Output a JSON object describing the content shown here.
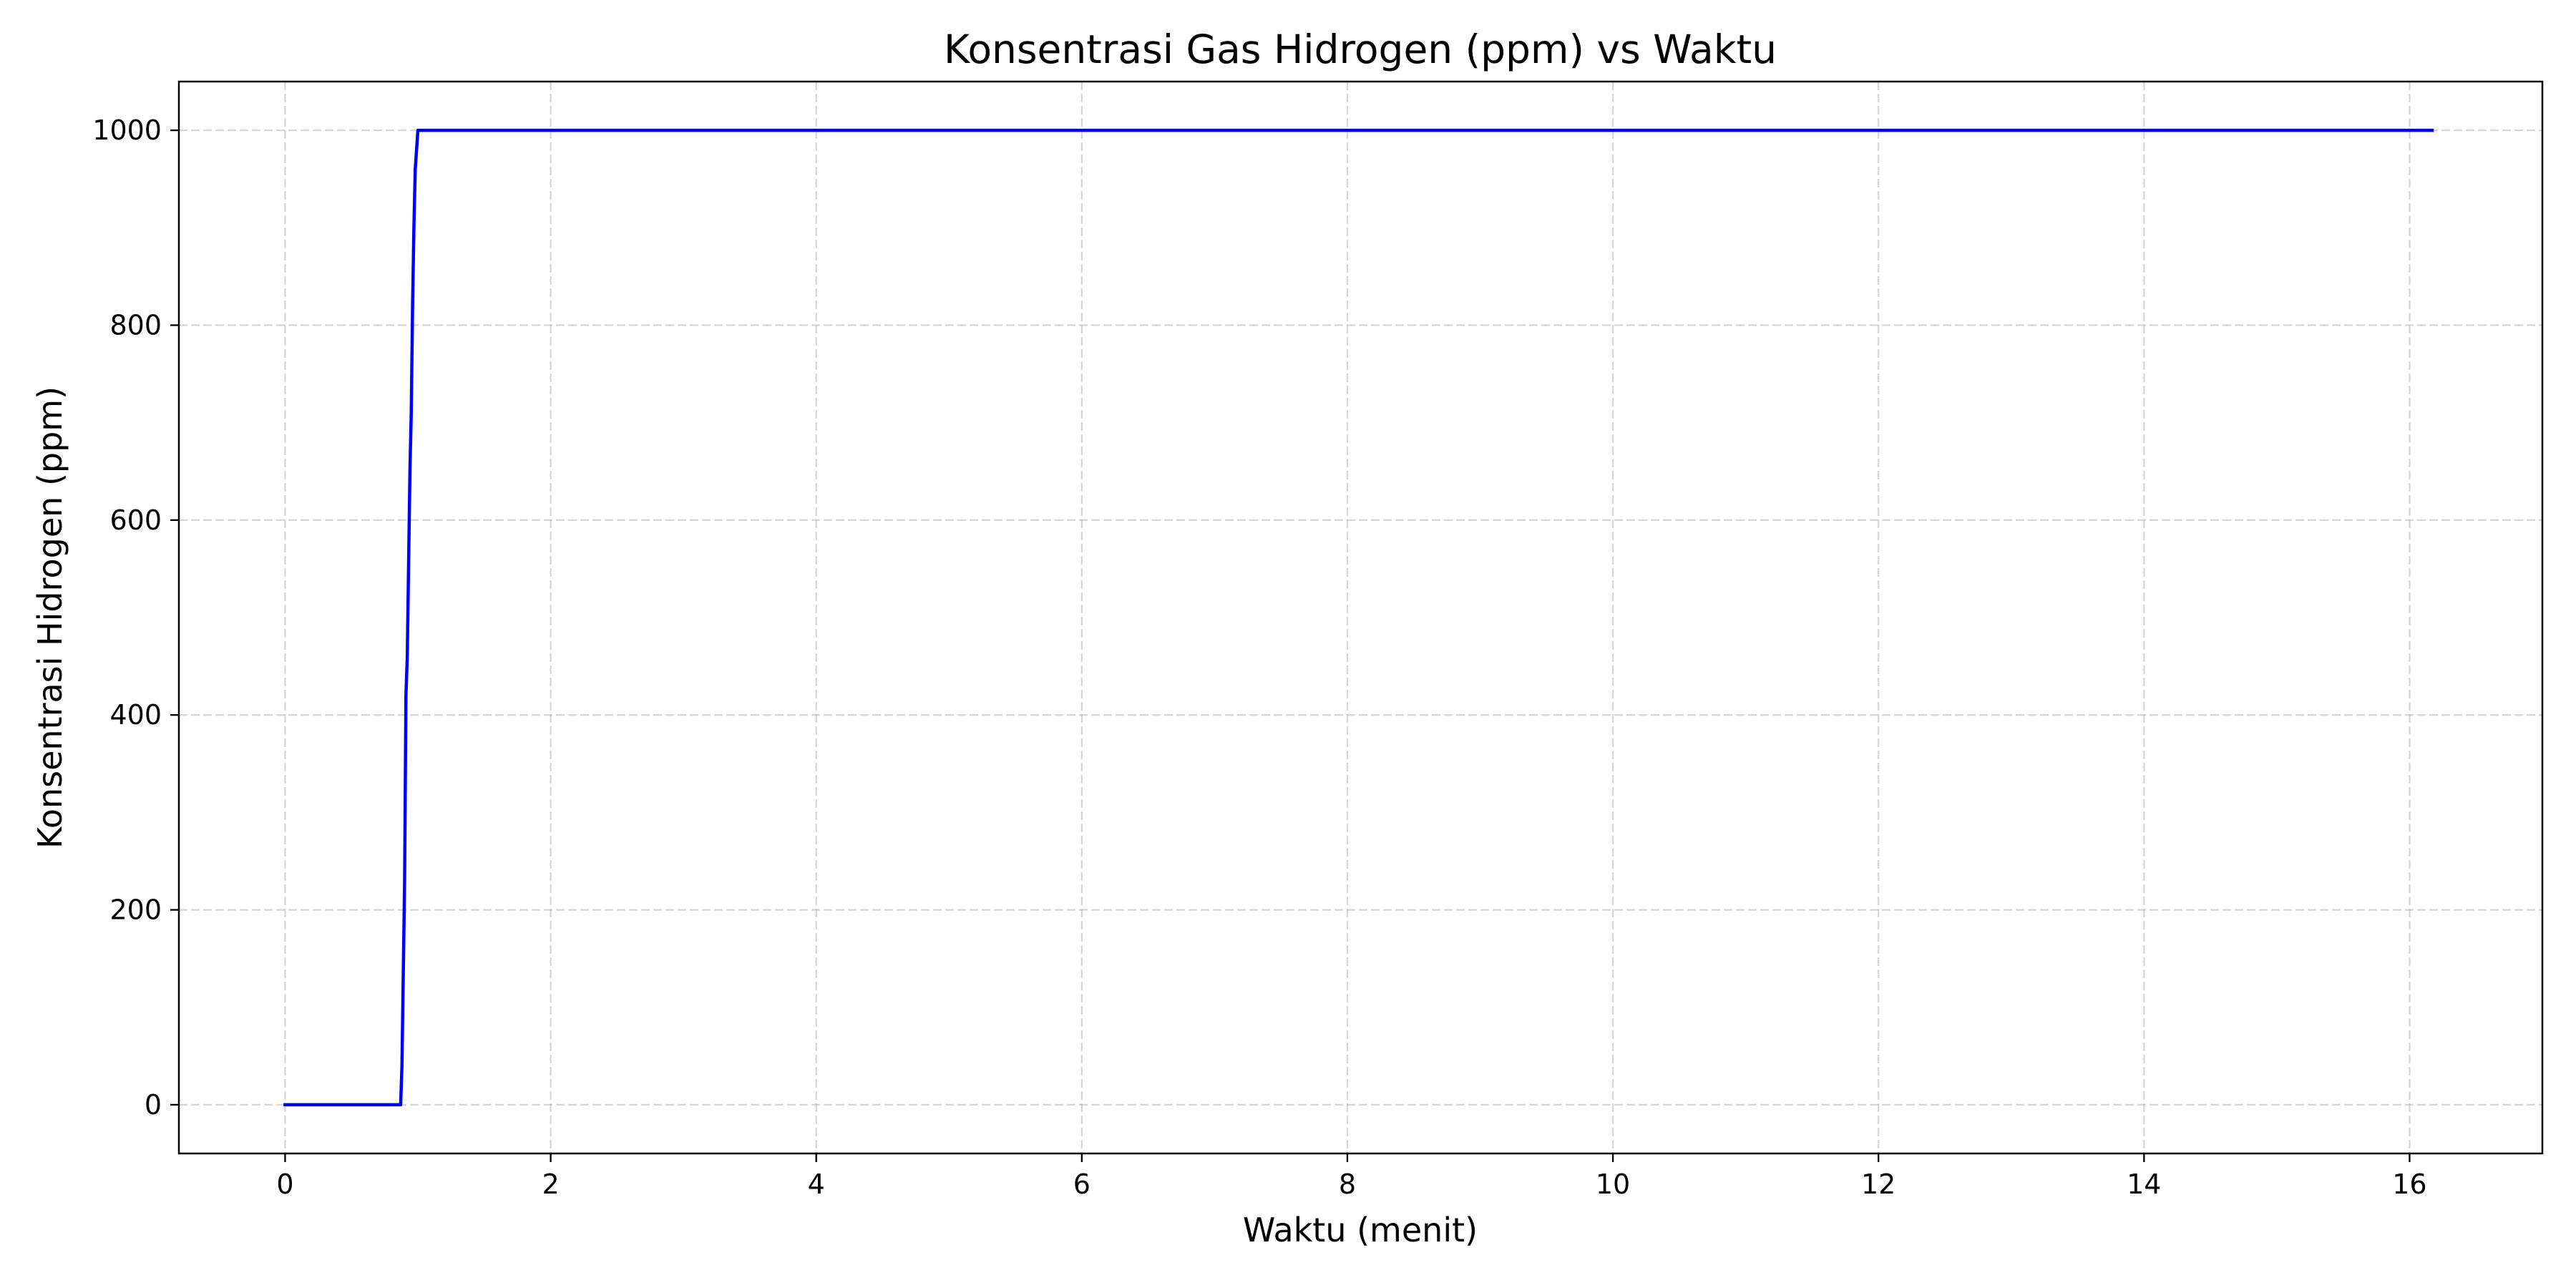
{
  "chart_data": {
    "type": "line",
    "title": "Konsentrasi Gas Hidrogen (ppm) vs Waktu",
    "xlabel": "Waktu (menit)",
    "ylabel": "Konsentrasi Hidrogen (ppm)",
    "xlim": [
      -0.8,
      17.0
    ],
    "ylim": [
      -50,
      1050
    ],
    "xticks": [
      0,
      2,
      4,
      6,
      8,
      10,
      12,
      14,
      16
    ],
    "yticks": [
      0,
      200,
      400,
      600,
      800,
      1000
    ],
    "grid": true,
    "series": [
      {
        "color": "#0000ff",
        "x": [
          0,
          0.2,
          0.4,
          0.6,
          0.8,
          0.87,
          0.88,
          0.9,
          0.91,
          0.92,
          0.94,
          0.95,
          0.96,
          0.97,
          0.98,
          1.0,
          1.5,
          2,
          3,
          4,
          5,
          6,
          7,
          8,
          9,
          10,
          11,
          12,
          13,
          14,
          15,
          16,
          16.17
        ],
        "y": [
          0,
          0,
          0,
          0,
          0,
          0,
          40,
          230,
          420,
          460,
          650,
          710,
          820,
          900,
          960,
          1000,
          1000,
          1000,
          1000,
          1000,
          1000,
          1000,
          1000,
          1000,
          1000,
          1000,
          1000,
          1000,
          1000,
          1000,
          1000,
          1000,
          1000
        ]
      }
    ]
  }
}
